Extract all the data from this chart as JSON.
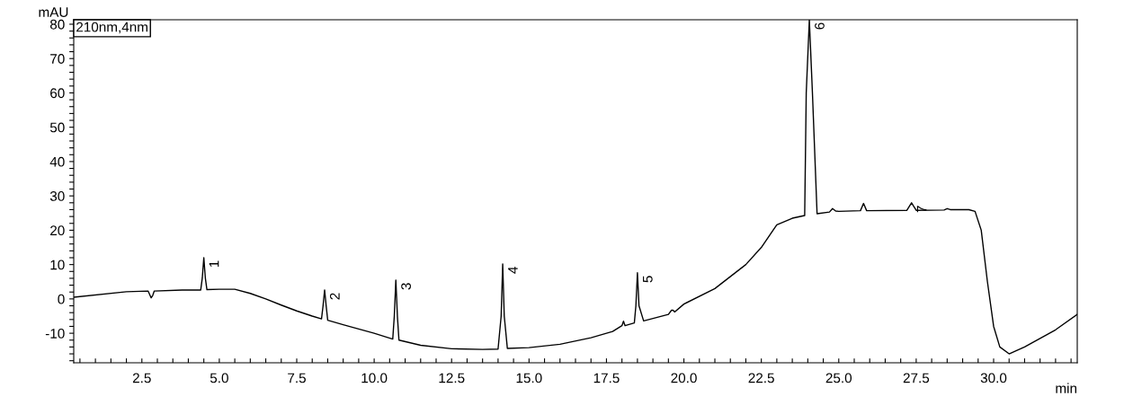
{
  "chart_data": {
    "type": "line",
    "xlabel": "min",
    "ylabel": "mAU",
    "xlim": [
      0.3,
      32.7
    ],
    "ylim": [
      -18.6,
      81.3
    ],
    "grid": false,
    "legend": "top left",
    "marker": "none",
    "line_style": "solid",
    "xticks": [
      {
        "value": 0.5,
        "label": null
      },
      {
        "value": 1.0,
        "label": null
      },
      {
        "value": 1.5,
        "label": null
      },
      {
        "value": 2.0,
        "label": null
      },
      {
        "value": 2.5,
        "label": "2.5"
      },
      {
        "value": 3.0,
        "label": null
      },
      {
        "value": 3.5,
        "label": null
      },
      {
        "value": 4.0,
        "label": null
      },
      {
        "value": 4.5,
        "label": null
      },
      {
        "value": 5,
        "label": "5.0"
      },
      {
        "value": 5.5,
        "label": null
      },
      {
        "value": 6.0,
        "label": null
      },
      {
        "value": 6.5,
        "label": null
      },
      {
        "value": 7.0,
        "label": null
      },
      {
        "value": 7.5,
        "label": "7.5"
      },
      {
        "value": 8.0,
        "label": null
      },
      {
        "value": 8.5,
        "label": null
      },
      {
        "value": 9.0,
        "label": null
      },
      {
        "value": 9.5,
        "label": null
      },
      {
        "value": 10,
        "label": "10.0"
      },
      {
        "value": 10.5,
        "label": null
      },
      {
        "value": 11.0,
        "label": null
      },
      {
        "value": 11.5,
        "label": null
      },
      {
        "value": 12.0,
        "label": null
      },
      {
        "value": 12.5,
        "label": "12.5"
      },
      {
        "value": 13.0,
        "label": null
      },
      {
        "value": 13.5,
        "label": null
      },
      {
        "value": 14.0,
        "label": null
      },
      {
        "value": 14.5,
        "label": null
      },
      {
        "value": 15,
        "label": "15.0"
      },
      {
        "value": 15.5,
        "label": null
      },
      {
        "value": 16.0,
        "label": null
      },
      {
        "value": 16.5,
        "label": null
      },
      {
        "value": 17.0,
        "label": null
      },
      {
        "value": 17.5,
        "label": "17.5"
      },
      {
        "value": 18.0,
        "label": null
      },
      {
        "value": 18.5,
        "label": null
      },
      {
        "value": 19.0,
        "label": null
      },
      {
        "value": 19.5,
        "label": null
      },
      {
        "value": 20,
        "label": "20.0"
      },
      {
        "value": 20.5,
        "label": null
      },
      {
        "value": 21.0,
        "label": null
      },
      {
        "value": 21.5,
        "label": null
      },
      {
        "value": 22.0,
        "label": null
      },
      {
        "value": 22.5,
        "label": "22.5"
      },
      {
        "value": 23.0,
        "label": null
      },
      {
        "value": 23.5,
        "label": null
      },
      {
        "value": 24.0,
        "label": null
      },
      {
        "value": 24.5,
        "label": null
      },
      {
        "value": 25,
        "label": "25.0"
      },
      {
        "value": 25.5,
        "label": null
      },
      {
        "value": 26.0,
        "label": null
      },
      {
        "value": 26.5,
        "label": null
      },
      {
        "value": 27.0,
        "label": null
      },
      {
        "value": 27.5,
        "label": "27.5"
      },
      {
        "value": 28.0,
        "label": null
      },
      {
        "value": 28.5,
        "label": null
      },
      {
        "value": 29.0,
        "label": null
      },
      {
        "value": 29.5,
        "label": null
      },
      {
        "value": 30,
        "label": "30.0"
      },
      {
        "value": 30.5,
        "label": null
      },
      {
        "value": 31.0,
        "label": null
      },
      {
        "value": 31.5,
        "label": null
      },
      {
        "value": 32.0,
        "label": null
      },
      {
        "value": 32.5,
        "label": null
      }
    ],
    "yticks": [
      {
        "value": -18,
        "label": null
      },
      {
        "value": -16,
        "label": null
      },
      {
        "value": -14,
        "label": null
      },
      {
        "value": -12,
        "label": null
      },
      -10,
      {
        "value": -8,
        "label": null
      },
      {
        "value": -6,
        "label": null
      },
      {
        "value": -4,
        "label": null
      },
      {
        "value": -2,
        "label": null
      },
      0,
      {
        "value": 2,
        "label": null
      },
      {
        "value": 4,
        "label": null
      },
      {
        "value": 6,
        "label": null
      },
      {
        "value": 8,
        "label": null
      },
      10,
      {
        "value": 12,
        "label": null
      },
      {
        "value": 14,
        "label": null
      },
      {
        "value": 16,
        "label": null
      },
      {
        "value": 18,
        "label": null
      },
      20,
      {
        "value": 22,
        "label": null
      },
      {
        "value": 24,
        "label": null
      },
      {
        "value": 26,
        "label": null
      },
      {
        "value": 28,
        "label": null
      },
      30,
      {
        "value": 32,
        "label": null
      },
      {
        "value": 34,
        "label": null
      },
      {
        "value": 36,
        "label": null
      },
      {
        "value": 38,
        "label": null
      },
      40,
      {
        "value": 42,
        "label": null
      },
      {
        "value": 44,
        "label": null
      },
      {
        "value": 46,
        "label": null
      },
      {
        "value": 48,
        "label": null
      },
      50,
      {
        "value": 52,
        "label": null
      },
      {
        "value": 54,
        "label": null
      },
      {
        "value": 56,
        "label": null
      },
      {
        "value": 58,
        "label": null
      },
      60,
      {
        "value": 62,
        "label": null
      },
      {
        "value": 64,
        "label": null
      },
      {
        "value": 66,
        "label": null
      },
      {
        "value": 68,
        "label": null
      },
      70,
      {
        "value": 72,
        "label": null
      },
      {
        "value": 74,
        "label": null
      },
      {
        "value": 76,
        "label": null
      },
      {
        "value": 78,
        "label": null
      },
      80
    ],
    "series": [
      {
        "name": "210nm,4nm",
        "color": "#000000",
        "x": [
          0.3,
          2.0,
          2.7,
          2.8,
          2.85,
          2.9,
          3.8,
          4.4,
          4.45,
          4.5,
          4.55,
          4.6,
          5.0,
          5.5,
          6.0,
          6.5,
          7.0,
          7.5,
          8.0,
          8.3,
          8.35,
          8.4,
          8.45,
          8.5,
          9.0,
          10.0,
          10.6,
          10.65,
          10.7,
          10.75,
          10.8,
          11.5,
          12.5,
          13.5,
          14.0,
          14.1,
          14.15,
          14.2,
          14.3,
          15.0,
          16.0,
          17.0,
          17.7,
          18.0,
          18.05,
          18.1,
          18.4,
          18.45,
          18.5,
          18.55,
          18.7,
          19.5,
          19.6,
          19.65,
          19.7,
          20.0,
          21.0,
          22.0,
          22.5,
          23.0,
          23.5,
          23.9,
          23.95,
          24.05,
          24.15,
          24.3,
          24.7,
          24.8,
          24.9,
          25.0,
          25.7,
          25.8,
          25.9,
          27.2,
          27.35,
          27.5,
          28.4,
          28.5,
          28.6,
          29.2,
          29.4,
          29.6,
          29.8,
          30.0,
          30.2,
          30.5,
          31.0,
          32.0,
          32.7
        ],
        "values": [
          0.5,
          2.1,
          2.3,
          0.3,
          1.0,
          2.3,
          2.6,
          2.6,
          6.0,
          12.0,
          6.0,
          2.7,
          2.8,
          2.8,
          1.6,
          0,
          -1.8,
          -3.5,
          -5,
          -5.8,
          -2,
          2.6,
          -2,
          -6.2,
          -7.5,
          -10,
          -11.7,
          -5,
          5.5,
          -5,
          -12,
          -13.5,
          -14.5,
          -14.7,
          -14.6,
          -5,
          10.2,
          -5,
          -14.4,
          -14.2,
          -13.2,
          -11.3,
          -9.5,
          -7.8,
          -6.5,
          -7.8,
          -7.0,
          -2,
          7.6,
          -2,
          -6.4,
          -4.5,
          -3.3,
          -3.3,
          -3.8,
          -1.5,
          3,
          10,
          15,
          21.6,
          23.5,
          24.3,
          60,
          81.3,
          60,
          24.8,
          25.3,
          26.3,
          25.6,
          25.5,
          25.7,
          27.8,
          25.7,
          25.8,
          28.0,
          25.8,
          25.9,
          26.3,
          26.0,
          26.0,
          25.5,
          20,
          5,
          -8,
          -14,
          -16,
          -14,
          -9,
          -4.5
        ]
      }
    ],
    "annotations": [
      {
        "text": "1",
        "x": 4.5,
        "y": 12.0
      },
      {
        "text": "2",
        "x": 8.4,
        "y": 2.6
      },
      {
        "text": "3",
        "x": 10.7,
        "y": 5.5
      },
      {
        "text": "4",
        "x": 14.15,
        "y": 10.2
      },
      {
        "text": "5",
        "x": 18.5,
        "y": 7.6
      },
      {
        "text": "6",
        "x": 24.05,
        "y": 81.3
      },
      {
        "text": "7",
        "x": 27.35,
        "y": 28.0
      }
    ]
  }
}
